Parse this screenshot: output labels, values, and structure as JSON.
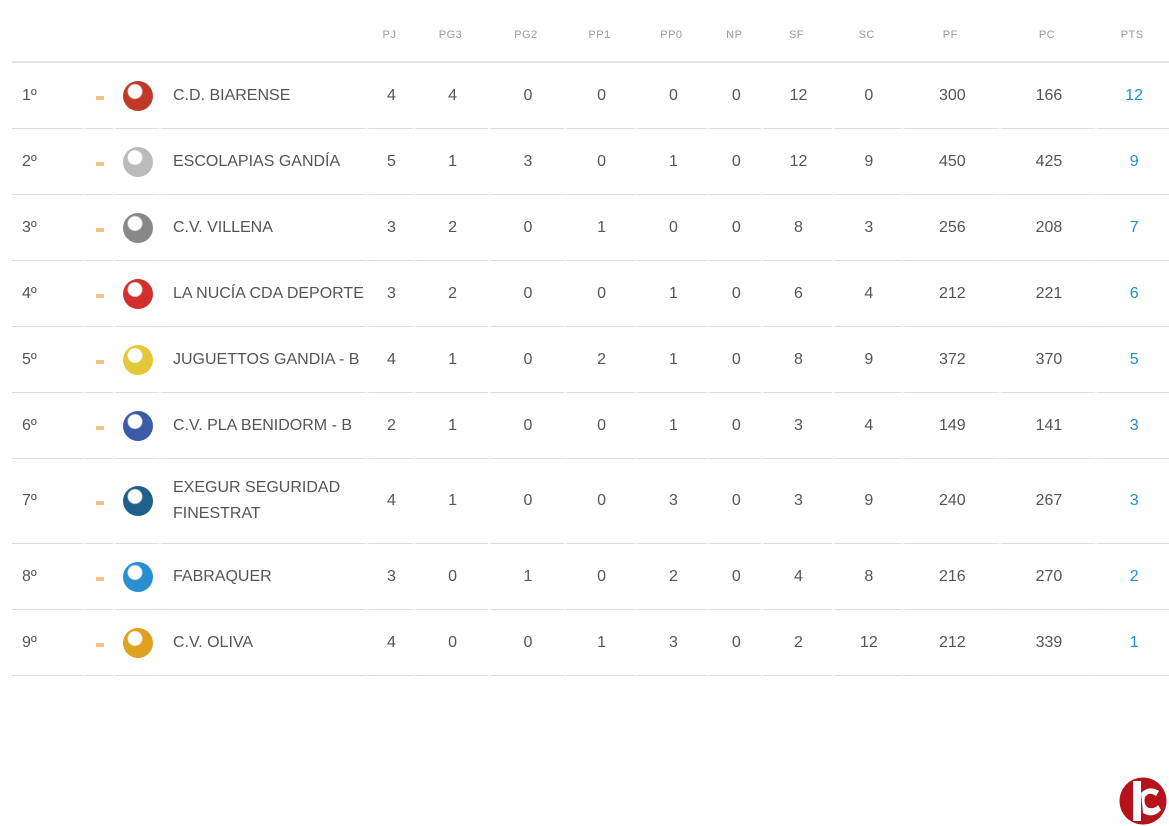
{
  "columns": [
    "PJ",
    "PG3",
    "PG2",
    "PP1",
    "PP0",
    "NP",
    "SF",
    "SC",
    "PF",
    "PC",
    "PTS"
  ],
  "rows": [
    {
      "pos": "1º",
      "team": "C.D. BIARENSE",
      "logo_color": "#c0392b",
      "stats": [
        "4",
        "4",
        "0",
        "0",
        "0",
        "0",
        "12",
        "0",
        "300",
        "166"
      ],
      "pts": "12"
    },
    {
      "pos": "2º",
      "team": "ESCOLAPIAS GANDÍA",
      "logo_color": "#bbbbbb",
      "stats": [
        "5",
        "1",
        "3",
        "0",
        "1",
        "0",
        "12",
        "9",
        "450",
        "425"
      ],
      "pts": "9"
    },
    {
      "pos": "3º",
      "team": "C.V. VILLENA",
      "logo_color": "#888888",
      "stats": [
        "3",
        "2",
        "0",
        "1",
        "0",
        "0",
        "8",
        "3",
        "256",
        "208"
      ],
      "pts": "7"
    },
    {
      "pos": "4º",
      "team": "LA NUCÍA CDA DEPORTE",
      "logo_color": "#d32f2f",
      "stats": [
        "3",
        "2",
        "0",
        "0",
        "1",
        "0",
        "6",
        "4",
        "212",
        "221"
      ],
      "pts": "6"
    },
    {
      "pos": "5º",
      "team": "JUGUETTOS GANDIA - B",
      "logo_color": "#e3c93a",
      "stats": [
        "4",
        "1",
        "0",
        "2",
        "1",
        "0",
        "8",
        "9",
        "372",
        "370"
      ],
      "pts": "5"
    },
    {
      "pos": "6º",
      "team": "C.V. PLA BENIDORM - B",
      "logo_color": "#3b5aa8",
      "stats": [
        "2",
        "1",
        "0",
        "0",
        "1",
        "0",
        "3",
        "4",
        "149",
        "141"
      ],
      "pts": "3"
    },
    {
      "pos": "7º",
      "team": "EXEGUR SEGURIDAD FINESTRAT",
      "logo_color": "#1f5f8b",
      "stats": [
        "4",
        "1",
        "0",
        "0",
        "3",
        "0",
        "3",
        "9",
        "240",
        "267"
      ],
      "pts": "3"
    },
    {
      "pos": "8º",
      "team": "FABRAQUER",
      "logo_color": "#2a8fd0",
      "stats": [
        "3",
        "0",
        "1",
        "0",
        "2",
        "0",
        "4",
        "8",
        "216",
        "270"
      ],
      "pts": "2"
    },
    {
      "pos": "9º",
      "team": "C.V. OLIVA",
      "logo_color": "#e0a020",
      "stats": [
        "4",
        "0",
        "0",
        "1",
        "3",
        "0",
        "2",
        "12",
        "212",
        "339"
      ],
      "pts": "1"
    }
  ],
  "accent": "#1a8fd6",
  "brand_color": "#b5121b"
}
